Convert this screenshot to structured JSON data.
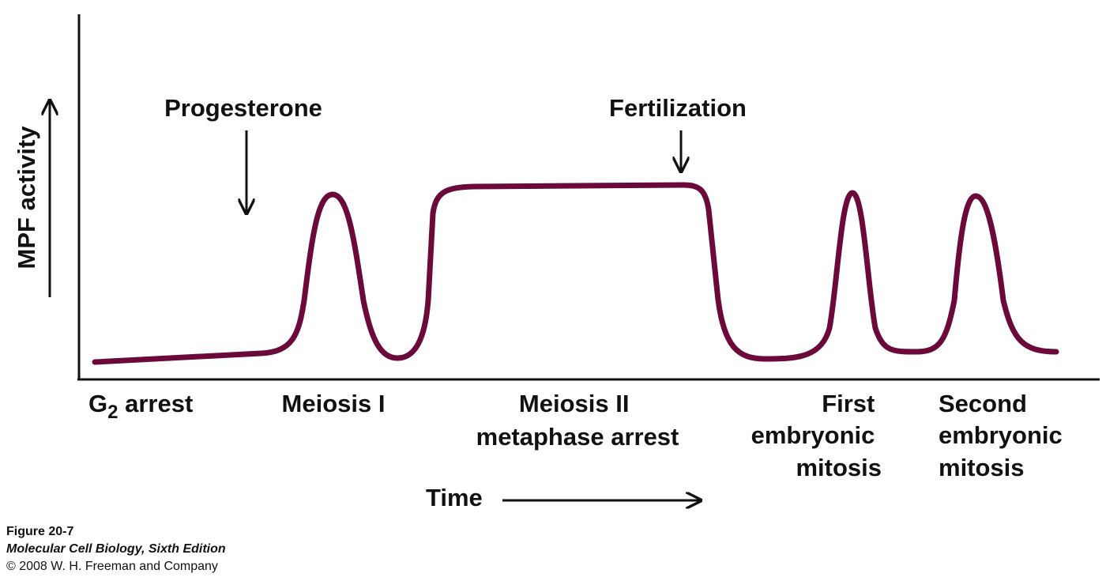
{
  "y_axis_label": "MPF activity",
  "x_axis_label": "Time",
  "events": {
    "progesterone": "Progesterone",
    "fertilization": "Fertilization"
  },
  "phases": {
    "g2_arrest": {
      "pre": "G",
      "sub": "2",
      "post": " arrest"
    },
    "meiosis_1": "Meiosis I",
    "meiosis_2": {
      "line1": "Meiosis II",
      "line2": "metaphase arrest"
    },
    "first_mitosis": {
      "line1": "First",
      "line2": "embryonic",
      "line3": "mitosis"
    },
    "second_mitosis": {
      "line1": "Second",
      "line2": "embryonic",
      "line3": "mitosis"
    }
  },
  "caption": {
    "figure": "Figure 20-7",
    "book": "Molecular Cell Biology, Sixth Edition",
    "copyright": "© 2008 W. H. Freeman and Company"
  },
  "colors": {
    "curve": "#6b0a3a",
    "ink": "#111111"
  }
}
